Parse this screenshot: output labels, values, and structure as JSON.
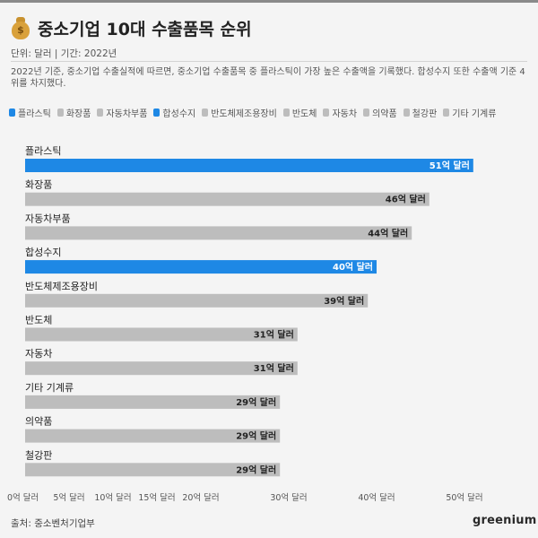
{
  "header": {
    "title": "중소기업 10대 수출품목 순위",
    "subtitle": "단위: 달러 | 기간: 2022년",
    "description": "2022년 기준, 중소기업 수출실적에 따르면, 중소기업 수출품목 중 플라스틱이 가장 높은 수출액을 기록했다. 합성수지 또한 수출액 기준 4위를 차지했다."
  },
  "footer": {
    "source": "출처: 중소벤처기업부",
    "logo": "greenium"
  },
  "colors": {
    "highlight": "#1e88e5",
    "default": "#bdbdbd"
  },
  "chart_data": {
    "type": "bar",
    "orientation": "horizontal",
    "title": "중소기업 10대 수출품목 순위",
    "categories": [
      "플라스틱",
      "화장품",
      "자동차부품",
      "합성수지",
      "반도체제조용장비",
      "반도체",
      "자동차",
      "기타 기계류",
      "의약품",
      "철강판"
    ],
    "values": [
      51,
      46,
      44,
      40,
      39,
      31,
      31,
      29,
      29,
      29
    ],
    "data_labels": [
      "51억 달러",
      "46억 달러",
      "44억 달러",
      "40억 달러",
      "39억 달러",
      "31억 달러",
      "31억 달러",
      "29억 달러",
      "29억 달러",
      "29억 달러"
    ],
    "highlighted": [
      true,
      false,
      false,
      true,
      false,
      false,
      false,
      false,
      false,
      false
    ],
    "unit": "억 달러",
    "xlim": [
      0,
      55
    ],
    "x_ticks": [
      0,
      5,
      10,
      15,
      20,
      30,
      40,
      50
    ],
    "x_tick_labels": [
      "0억 달러",
      "5억 달러",
      "10억 달러",
      "15억 달러",
      "20억 달러",
      "30억 달러",
      "40억 달러",
      "50억 달러"
    ],
    "legend": [
      "플라스틱",
      "화장품",
      "자동차부품",
      "합성수지",
      "반도체제조용장비",
      "반도체",
      "자동차",
      "의약품",
      "철강판",
      "기타 기계류"
    ],
    "legend_position": "top-left",
    "grid": false
  }
}
